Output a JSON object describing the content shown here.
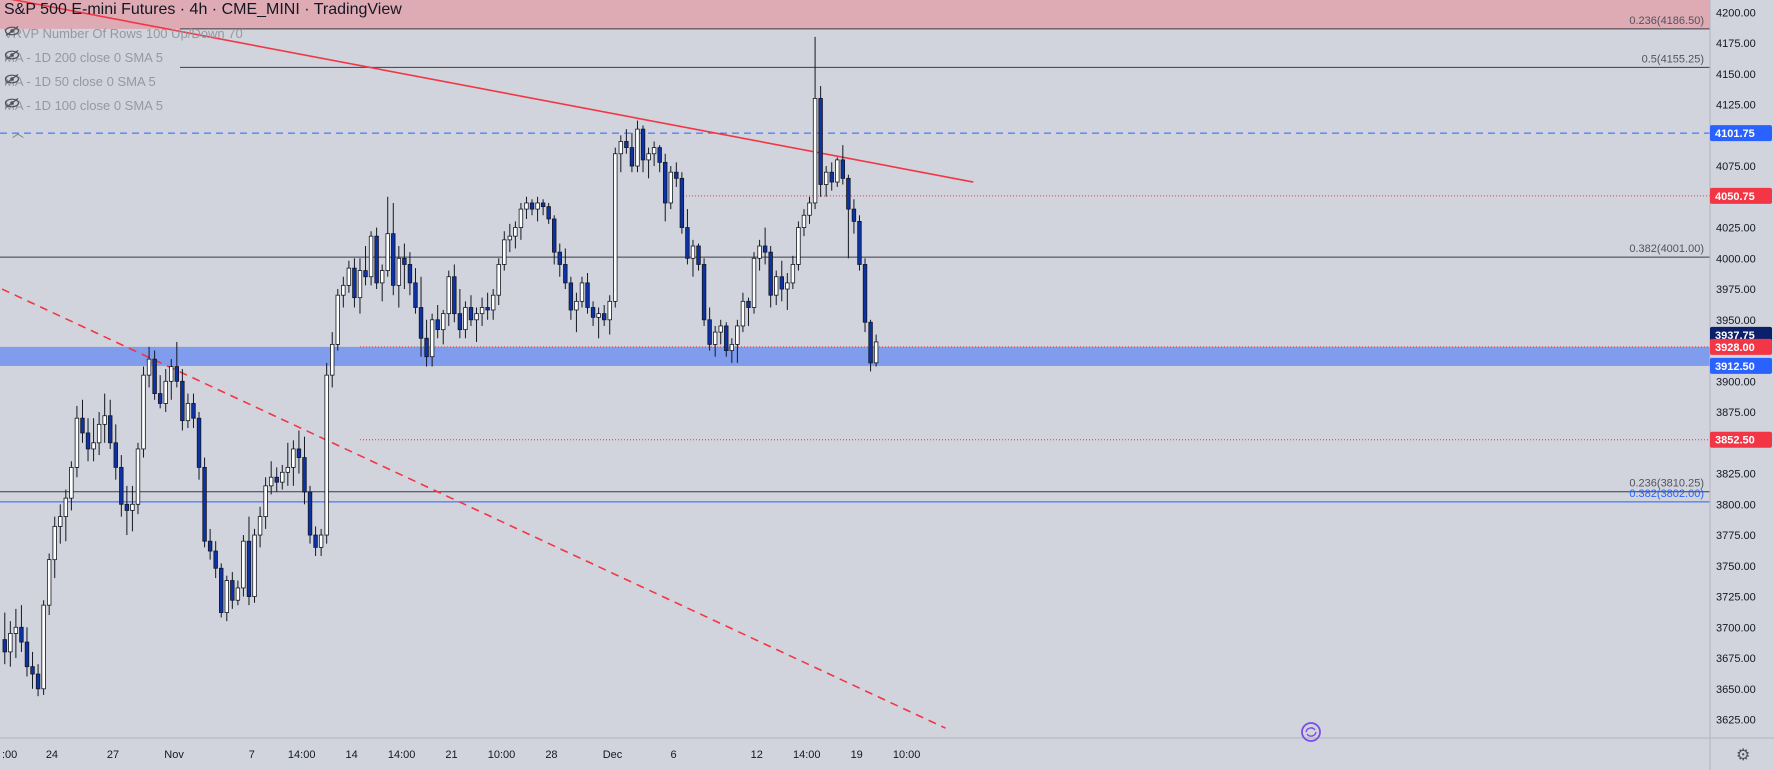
{
  "title": "S&P 500 E-mini Futures · 4h · CME_MINI · TradingView",
  "indicators": [
    {
      "label": "VRVP Number Of Rows 100 Up/Down 70",
      "icon": "eye-hidden-icon"
    },
    {
      "label": "MA - 1D 200 close 0 SMA 5",
      "icon": "eye-hidden-icon"
    },
    {
      "label": "MA - 1D 50 close 0 SMA 5",
      "icon": "eye-hidden-icon"
    },
    {
      "label": "MA - 1D 100 close 0 SMA 5",
      "icon": "eye-hidden-icon"
    }
  ],
  "colors": {
    "background": "#d1d4dc",
    "bull": "#ffffff",
    "bear": "#0d32a8",
    "wick": "#131722",
    "red_line": "#f23645",
    "blue_line": "#2962ff",
    "zone": "#6a8ef0",
    "top_zone": "#e0a3ad"
  },
  "chart_data": {
    "type": "candlestick",
    "title": "S&P 500 E-mini Futures · 4h · CME_MINI · TradingView",
    "ylim": [
      3610,
      4210
    ],
    "y_ticks": [
      "3625.00",
      "3650.00",
      "3675.00",
      "3700.00",
      "3725.00",
      "3750.00",
      "3775.00",
      "3800.00",
      "3825.00",
      "3850.00",
      "3875.00",
      "3900.00",
      "3925.00",
      "3950.00",
      "3975.00",
      "4000.00",
      "4025.00",
      "4050.00",
      "4075.00",
      "4100.00",
      "4125.00",
      "4150.00",
      "4175.00",
      "4200.00"
    ],
    "x_ticks": [
      {
        "label": ":00",
        "t": 0
      },
      {
        "label": "24",
        "t": 9
      },
      {
        "label": "27",
        "t": 20
      },
      {
        "label": "Nov",
        "t": 31
      },
      {
        "label": "7",
        "t": 45
      },
      {
        "label": "14:00",
        "t": 54
      },
      {
        "label": "14",
        "t": 63
      },
      {
        "label": "14:00",
        "t": 72
      },
      {
        "label": "21",
        "t": 81
      },
      {
        "label": "10:00",
        "t": 90
      },
      {
        "label": "28",
        "t": 99
      },
      {
        "label": "Dec",
        "t": 110
      },
      {
        "label": "6",
        "t": 121
      },
      {
        "label": "12",
        "t": 136
      },
      {
        "label": "14:00",
        "t": 145
      },
      {
        "label": "19",
        "t": 154
      },
      {
        "label": "10:00",
        "t": 163
      }
    ],
    "series": [
      {
        "name": "ES 4h",
        "ohlc": [
          [
            3690,
            3712,
            3670,
            3680
          ],
          [
            3680,
            3705,
            3668,
            3695
          ],
          [
            3695,
            3715,
            3675,
            3700
          ],
          [
            3700,
            3718,
            3680,
            3688
          ],
          [
            3688,
            3700,
            3660,
            3668
          ],
          [
            3668,
            3680,
            3650,
            3662
          ],
          [
            3662,
            3670,
            3644,
            3650
          ],
          [
            3650,
            3722,
            3645,
            3718
          ],
          [
            3718,
            3760,
            3710,
            3755
          ],
          [
            3755,
            3790,
            3740,
            3782
          ],
          [
            3782,
            3800,
            3768,
            3790
          ],
          [
            3790,
            3812,
            3770,
            3805
          ],
          [
            3805,
            3835,
            3795,
            3830
          ],
          [
            3830,
            3880,
            3822,
            3870
          ],
          [
            3870,
            3885,
            3850,
            3858
          ],
          [
            3858,
            3870,
            3835,
            3845
          ],
          [
            3845,
            3870,
            3835,
            3850
          ],
          [
            3850,
            3875,
            3840,
            3865
          ],
          [
            3865,
            3890,
            3850,
            3872
          ],
          [
            3872,
            3885,
            3845,
            3850
          ],
          [
            3850,
            3865,
            3820,
            3830
          ],
          [
            3830,
            3840,
            3790,
            3800
          ],
          [
            3800,
            3815,
            3775,
            3795
          ],
          [
            3795,
            3815,
            3778,
            3800
          ],
          [
            3800,
            3850,
            3792,
            3845
          ],
          [
            3845,
            3912,
            3838,
            3905
          ],
          [
            3905,
            3928,
            3895,
            3918
          ],
          [
            3918,
            3925,
            3885,
            3890
          ],
          [
            3890,
            3905,
            3878,
            3882
          ],
          [
            3882,
            3910,
            3875,
            3900
          ],
          [
            3900,
            3918,
            3885,
            3912
          ],
          [
            3912,
            3932,
            3895,
            3900
          ],
          [
            3900,
            3910,
            3860,
            3868
          ],
          [
            3868,
            3890,
            3862,
            3882
          ],
          [
            3882,
            3890,
            3862,
            3870
          ],
          [
            3870,
            3875,
            3820,
            3830
          ],
          [
            3830,
            3838,
            3765,
            3770
          ],
          [
            3770,
            3780,
            3755,
            3762
          ],
          [
            3762,
            3770,
            3740,
            3748
          ],
          [
            3748,
            3752,
            3708,
            3712
          ],
          [
            3712,
            3742,
            3705,
            3738
          ],
          [
            3738,
            3745,
            3715,
            3722
          ],
          [
            3722,
            3738,
            3718,
            3732
          ],
          [
            3732,
            3775,
            3725,
            3770
          ],
          [
            3770,
            3790,
            3718,
            3725
          ],
          [
            3725,
            3780,
            3720,
            3775
          ],
          [
            3775,
            3798,
            3765,
            3790
          ],
          [
            3790,
            3822,
            3780,
            3815
          ],
          [
            3815,
            3835,
            3808,
            3822
          ],
          [
            3822,
            3830,
            3810,
            3818
          ],
          [
            3818,
            3832,
            3812,
            3826
          ],
          [
            3826,
            3850,
            3815,
            3830
          ],
          [
            3830,
            3852,
            3815,
            3845
          ],
          [
            3845,
            3860,
            3825,
            3838
          ],
          [
            3838,
            3855,
            3800,
            3810
          ],
          [
            3810,
            3815,
            3768,
            3775
          ],
          [
            3775,
            3782,
            3758,
            3765
          ],
          [
            3765,
            3780,
            3758,
            3775
          ],
          [
            3775,
            3915,
            3768,
            3905
          ],
          [
            3905,
            3940,
            3895,
            3930
          ],
          [
            3930,
            3975,
            3925,
            3970
          ],
          [
            3970,
            3985,
            3960,
            3978
          ],
          [
            3978,
            3998,
            3972,
            3992
          ],
          [
            3992,
            4000,
            3960,
            3968
          ],
          [
            3968,
            4000,
            3955,
            3990
          ],
          [
            3990,
            4010,
            3978,
            3985
          ],
          [
            3985,
            4022,
            3978,
            4018
          ],
          [
            4018,
            4025,
            3975,
            3980
          ],
          [
            3980,
            3995,
            3965,
            3990
          ],
          [
            3990,
            4050,
            3985,
            4020
          ],
          [
            4020,
            4045,
            3970,
            3978
          ],
          [
            3978,
            4010,
            3960,
            4000
          ],
          [
            4000,
            4012,
            3975,
            3995
          ],
          [
            3995,
            4005,
            3970,
            3980
          ],
          [
            3980,
            3992,
            3955,
            3960
          ],
          [
            3960,
            3985,
            3920,
            3935
          ],
          [
            3935,
            3950,
            3912,
            3920
          ],
          [
            3920,
            3955,
            3912,
            3950
          ],
          [
            3950,
            3962,
            3935,
            3942
          ],
          [
            3942,
            3958,
            3930,
            3955
          ],
          [
            3955,
            3990,
            3945,
            3985
          ],
          [
            3985,
            3995,
            3948,
            3955
          ],
          [
            3955,
            3975,
            3935,
            3942
          ],
          [
            3942,
            3965,
            3935,
            3960
          ],
          [
            3960,
            3970,
            3945,
            3950
          ],
          [
            3950,
            3960,
            3932,
            3955
          ],
          [
            3955,
            3968,
            3945,
            3960
          ],
          [
            3960,
            3972,
            3950,
            3958
          ],
          [
            3958,
            3975,
            3950,
            3970
          ],
          [
            3970,
            4000,
            3962,
            3995
          ],
          [
            3995,
            4022,
            3990,
            4015
          ],
          [
            4015,
            4028,
            4005,
            4018
          ],
          [
            4018,
            4030,
            4008,
            4025
          ],
          [
            4025,
            4045,
            4015,
            4040
          ],
          [
            4040,
            4050,
            4032,
            4045
          ],
          [
            4045,
            4048,
            4035,
            4040
          ],
          [
            4040,
            4050,
            4030,
            4045
          ],
          [
            4045,
            4048,
            4035,
            4042
          ],
          [
            4042,
            4045,
            4028,
            4032
          ],
          [
            4032,
            4035,
            3995,
            4005
          ],
          [
            4005,
            4012,
            3985,
            3995
          ],
          [
            3995,
            4008,
            3975,
            3980
          ],
          [
            3980,
            3985,
            3950,
            3958
          ],
          [
            3958,
            3972,
            3940,
            3965
          ],
          [
            3965,
            3985,
            3960,
            3980
          ],
          [
            3980,
            3988,
            3955,
            3960
          ],
          [
            3960,
            3965,
            3945,
            3952
          ],
          [
            3952,
            3960,
            3935,
            3955
          ],
          [
            3955,
            3962,
            3945,
            3950
          ],
          [
            3950,
            3970,
            3938,
            3965
          ],
          [
            3965,
            4090,
            3960,
            4085
          ],
          [
            4085,
            4100,
            4070,
            4095
          ],
          [
            4095,
            4105,
            4085,
            4090
          ],
          [
            4090,
            4102,
            4070,
            4075
          ],
          [
            4075,
            4112,
            4070,
            4105
          ],
          [
            4105,
            4108,
            4070,
            4080
          ],
          [
            4080,
            4090,
            4065,
            4085
          ],
          [
            4085,
            4095,
            4075,
            4090
          ],
          [
            4090,
            4092,
            4070,
            4078
          ],
          [
            4078,
            4085,
            4030,
            4045
          ],
          [
            4045,
            4075,
            4040,
            4070
          ],
          [
            4070,
            4078,
            4058,
            4065
          ],
          [
            4065,
            4070,
            4020,
            4025
          ],
          [
            4025,
            4040,
            3995,
            4000
          ],
          [
            4000,
            4015,
            3985,
            4010
          ],
          [
            4010,
            4012,
            3990,
            3995
          ],
          [
            3995,
            4000,
            3945,
            3950
          ],
          [
            3950,
            3960,
            3925,
            3930
          ],
          [
            3930,
            3945,
            3920,
            3940
          ],
          [
            3940,
            3950,
            3930,
            3945
          ],
          [
            3945,
            3948,
            3920,
            3925
          ],
          [
            3925,
            3935,
            3915,
            3930
          ],
          [
            3930,
            3950,
            3915,
            3945
          ],
          [
            3945,
            3972,
            3940,
            3965
          ],
          [
            3965,
            3968,
            3945,
            3960
          ],
          [
            3960,
            4005,
            3955,
            4000
          ],
          [
            4000,
            4015,
            3990,
            4010
          ],
          [
            4010,
            4025,
            3995,
            4005
          ],
          [
            4005,
            4010,
            3960,
            3970
          ],
          [
            3970,
            3990,
            3962,
            3985
          ],
          [
            3985,
            3998,
            3965,
            3975
          ],
          [
            3975,
            3988,
            3958,
            3980
          ],
          [
            3980,
            4002,
            3975,
            3995
          ],
          [
            3995,
            4030,
            3990,
            4025
          ],
          [
            4025,
            4040,
            4018,
            4035
          ],
          [
            4035,
            4050,
            4028,
            4045
          ],
          [
            4045,
            4180,
            4040,
            4130
          ],
          [
            4130,
            4140,
            4050,
            4060
          ],
          [
            4060,
            4075,
            4050,
            4070
          ],
          [
            4070,
            4078,
            4055,
            4062
          ],
          [
            4062,
            4082,
            4058,
            4080
          ],
          [
            4080,
            4092,
            4060,
            4065
          ],
          [
            4065,
            4068,
            4000,
            4040
          ],
          [
            4040,
            4048,
            4020,
            4030
          ],
          [
            4030,
            4035,
            3990,
            3995
          ],
          [
            3995,
            4000,
            3940,
            3948
          ],
          [
            3948,
            3950,
            3908,
            3915
          ],
          [
            3915,
            3938,
            3912,
            3932
          ]
        ]
      }
    ],
    "horizontal_levels": [
      {
        "value": 4186.5,
        "label": "0.236(4186.50)",
        "style": "fib"
      },
      {
        "value": 4155.25,
        "label": "0.5(4155.25)",
        "style": "fib"
      },
      {
        "value": 4101.75,
        "label": "",
        "style": "blue-dashed"
      },
      {
        "value": 4050.75,
        "label": "",
        "style": "red-dotted"
      },
      {
        "value": 4001.0,
        "label": "0.382(4001.00)",
        "style": "fib"
      },
      {
        "value": 3928.0,
        "label": "",
        "style": "red-dotted"
      },
      {
        "value": 3852.5,
        "label": "",
        "style": "red-dotted"
      },
      {
        "value": 3810.25,
        "label": "0.236(3810.25)",
        "style": "fib"
      },
      {
        "value": 3802.0,
        "label": "0.382(3802.00)",
        "style": "fib-blue"
      }
    ],
    "zones": [
      {
        "from": 3912.5,
        "to": 3928.0
      },
      {
        "from": 4186.5,
        "to": 4210
      }
    ],
    "trendlines": [
      {
        "style": "solid",
        "points": [
          [
            0,
            4212
          ],
          [
            175,
            4062
          ]
        ]
      },
      {
        "style": "dashed",
        "points": [
          [
            0,
            3975
          ],
          [
            170,
            3618
          ]
        ]
      }
    ],
    "price_badges": [
      {
        "value": 4101.75,
        "label": "4101.75",
        "color": "#2962ff"
      },
      {
        "value": 4050.75,
        "label": "4050.75",
        "color": "#f23645"
      },
      {
        "value": 3937.75,
        "label": "3937.75",
        "color": "#0b1f6b"
      },
      {
        "value": 3928.0,
        "label": "3928.00",
        "color": "#f23645"
      },
      {
        "value": 3912.5,
        "label": "3912.50",
        "color": "#2962ff"
      },
      {
        "value": 3852.5,
        "label": "3852.50",
        "color": "#f23645"
      }
    ]
  }
}
